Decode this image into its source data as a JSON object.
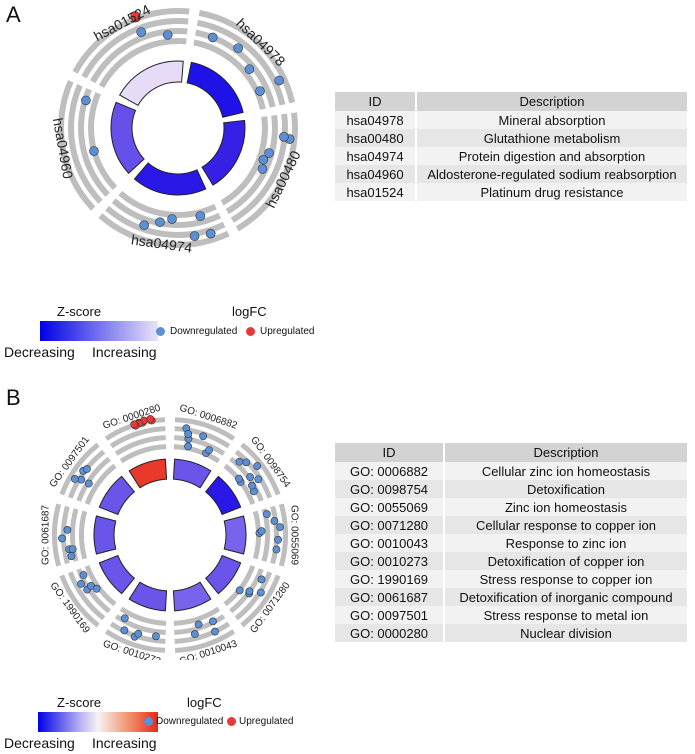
{
  "panels": [
    {
      "label": "A",
      "colors": {
        "down": "#5b8fd6",
        "up": "#e8393a",
        "ring": "#bebebe"
      },
      "terms": [
        {
          "id": "hsa04978",
          "zfill": "#1f12e8",
          "down": 5,
          "up": 0
        },
        {
          "id": "hsa00480",
          "zfill": "#3520e6",
          "down": 5,
          "up": 0
        },
        {
          "id": "hsa04974",
          "zfill": "#2a18e8",
          "down": 6,
          "up": 0
        },
        {
          "id": "hsa04960",
          "zfill": "#6550ea",
          "down": 2,
          "up": 0
        },
        {
          "id": "hsa01524",
          "zfill": "#e6dcf7",
          "down": 2,
          "up": 2
        }
      ],
      "table": {
        "headers": [
          "ID",
          "Description"
        ],
        "rows": [
          [
            "hsa04978",
            "Mineral absorption"
          ],
          [
            "hsa00480",
            "Glutathione metabolism"
          ],
          [
            "hsa04974",
            "Protein digestion and absorption"
          ],
          [
            "hsa04960",
            "Aldosterone-regulated sodium reabsorption"
          ],
          [
            "hsa01524",
            "Platinum drug resistance"
          ]
        ]
      },
      "legend": {
        "zscore_title": "Z-score",
        "decreasing": "Decreasing",
        "increasing": "Increasing",
        "logfc_title": "logFC",
        "down_label": "Downregulated",
        "up_label": "Upregulated"
      }
    },
    {
      "label": "B",
      "colors": {
        "down": "#5b8fd6",
        "up": "#e8393a",
        "ring": "#bebebe"
      },
      "terms": [
        {
          "id": "GO: 0006882",
          "zfill": "#6a55ea",
          "down": 7,
          "up": 0
        },
        {
          "id": "GO: 0098754",
          "zfill": "#2a18e8",
          "down": 9,
          "up": 0
        },
        {
          "id": "GO: 0055069",
          "zfill": "#7864ec",
          "down": 7,
          "up": 0
        },
        {
          "id": "GO: 0071280",
          "zfill": "#6a55ea",
          "down": 5,
          "up": 0
        },
        {
          "id": "GO: 0010043",
          "zfill": "#7864ec",
          "down": 4,
          "up": 0
        },
        {
          "id": "GO: 0010273",
          "zfill": "#6a55ea",
          "down": 5,
          "up": 0
        },
        {
          "id": "GO: 1990169",
          "zfill": "#6a55ea",
          "down": 5,
          "up": 0
        },
        {
          "id": "GO: 0061687",
          "zfill": "#6a55ea",
          "down": 5,
          "up": 0
        },
        {
          "id": "GO: 0097501",
          "zfill": "#6a55ea",
          "down": 5,
          "up": 0
        },
        {
          "id": "GO: 0000280",
          "zfill": "#e8392a",
          "down": 0,
          "up": 8
        }
      ],
      "table": {
        "headers": [
          "ID",
          "Description"
        ],
        "rows": [
          [
            "GO: 0006882",
            "Cellular zinc ion homeostasis"
          ],
          [
            "GO: 0098754",
            "Detoxification"
          ],
          [
            "GO: 0055069",
            "Zinc ion homeostasis"
          ],
          [
            "GO: 0071280",
            "Cellular response to copper ion"
          ],
          [
            "GO: 0010043",
            "Response to zinc ion"
          ],
          [
            "GO: 0010273",
            "Detoxification of copper ion"
          ],
          [
            "GO: 1990169",
            "Stress response to copper ion"
          ],
          [
            "GO: 0061687",
            "Detoxification of inorganic compound"
          ],
          [
            "GO: 0097501",
            "Stress response to metal ion"
          ],
          [
            "GO: 0000280",
            "Nuclear division"
          ]
        ]
      },
      "legend": {
        "zscore_title": "Z-score",
        "decreasing": "Decreasing",
        "increasing": "Increasing",
        "logfc_title": "logFC",
        "down_label": "Downregulated",
        "up_label": "Upregulated"
      }
    }
  ]
}
